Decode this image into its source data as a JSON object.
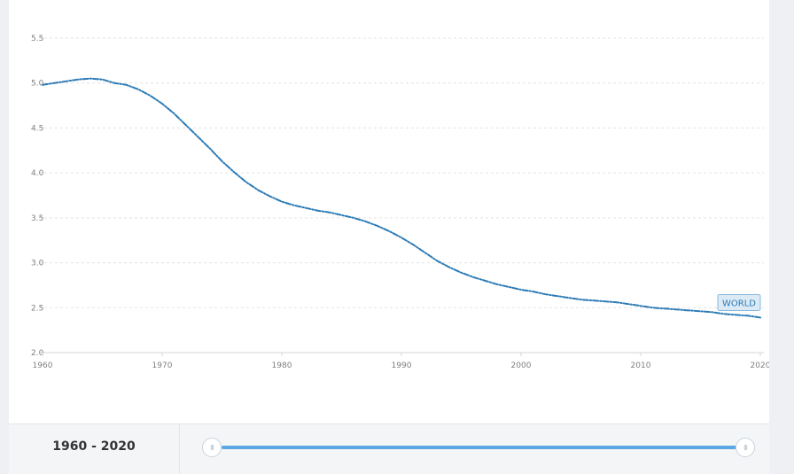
{
  "chart_data": {
    "type": "line",
    "x": [
      1960,
      1961,
      1962,
      1963,
      1964,
      1965,
      1966,
      1967,
      1968,
      1969,
      1970,
      1971,
      1972,
      1973,
      1974,
      1975,
      1976,
      1977,
      1978,
      1979,
      1980,
      1981,
      1982,
      1983,
      1984,
      1985,
      1986,
      1987,
      1988,
      1989,
      1990,
      1991,
      1992,
      1993,
      1994,
      1995,
      1996,
      1997,
      1998,
      1999,
      2000,
      2001,
      2002,
      2003,
      2004,
      2005,
      2006,
      2007,
      2008,
      2009,
      2010,
      2011,
      2012,
      2013,
      2014,
      2015,
      2016,
      2017,
      2018,
      2019,
      2020
    ],
    "series": [
      {
        "name": "WORLD",
        "values": [
          4.98,
          5.0,
          5.02,
          5.04,
          5.05,
          5.04,
          5.0,
          4.98,
          4.93,
          4.86,
          4.77,
          4.66,
          4.53,
          4.4,
          4.27,
          4.13,
          4.01,
          3.9,
          3.81,
          3.74,
          3.68,
          3.64,
          3.61,
          3.58,
          3.56,
          3.53,
          3.5,
          3.46,
          3.41,
          3.35,
          3.28,
          3.2,
          3.11,
          3.02,
          2.95,
          2.89,
          2.84,
          2.8,
          2.76,
          2.73,
          2.7,
          2.68,
          2.65,
          2.63,
          2.61,
          2.59,
          2.58,
          2.57,
          2.56,
          2.54,
          2.52,
          2.5,
          2.49,
          2.48,
          2.47,
          2.46,
          2.45,
          2.43,
          2.42,
          2.41,
          2.39
        ]
      }
    ],
    "ylim": [
      2.0,
      5.5
    ],
    "y_ticks": [
      "2.0",
      "2.5",
      "3.0",
      "3.5",
      "4.0",
      "4.5",
      "5.0",
      "5.5"
    ],
    "x_ticks": [
      "1960",
      "1970",
      "1980",
      "1990",
      "2000",
      "2010",
      "2020"
    ],
    "grid": true,
    "series_label": "WORLD"
  },
  "range_control": {
    "label": "1960 - 2020",
    "handle_glyph": "III"
  }
}
